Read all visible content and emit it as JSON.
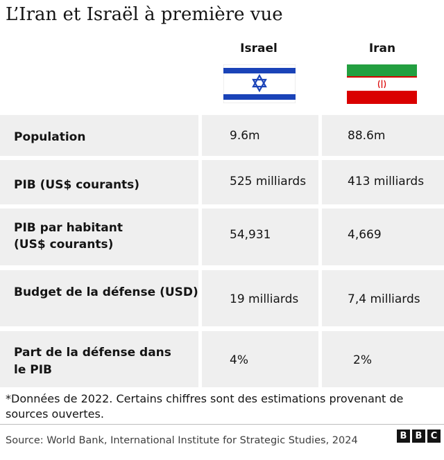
{
  "title": "L’Iran et Israël à première vue",
  "columns": [
    {
      "name": "Israel",
      "flag": "israel-flag"
    },
    {
      "name": "Iran",
      "flag": "iran-flag"
    }
  ],
  "rows": [
    {
      "label": "Population",
      "israel": "9.6m",
      "iran": "88.6m"
    },
    {
      "label": "PIB (US$ courants)",
      "israel": "525 milliards",
      "iran": "413 milliards"
    },
    {
      "label_lines": [
        "PIB par habitant",
        "(US$ courants)"
      ],
      "israel": "54,931",
      "iran": "4,669"
    },
    {
      "label": "Budget de la défense (USD)",
      "israel": "19 milliards",
      "iran": "7,4 milliards"
    },
    {
      "label_lines": [
        "Part de la défense dans",
        "le PIB"
      ],
      "israel": "4%",
      "iran": "2%"
    }
  ],
  "note": "*Données de 2022. Certains chiffres sont des estimations provenant de sources ouvertes.",
  "source": "Source: World Bank, International Institute for Strategic Studies, 2024",
  "logo": {
    "letters": [
      "B",
      "B",
      "C"
    ]
  },
  "colors": {
    "israel_blue": "#1a43b8",
    "iran_green": "#239f40",
    "iran_red": "#da0000",
    "cell_bg": "#efefef"
  }
}
